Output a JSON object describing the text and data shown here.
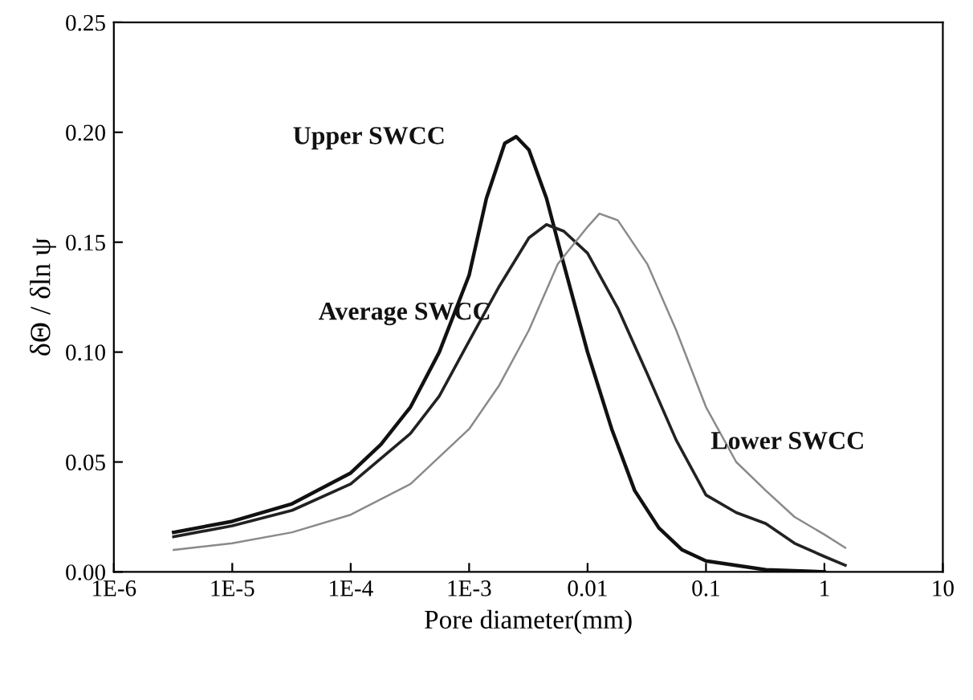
{
  "chart_data": {
    "type": "line",
    "xlabel": "Pore diameter(mm)",
    "ylabel": "δΘ / δln ψ",
    "log": "x",
    "grid": false,
    "legend": false,
    "marker": "none",
    "line_style": "solid",
    "xlim": [
      1e-06,
      10
    ],
    "xticks": [
      {
        "value": 1e-06,
        "label": "1E-6"
      },
      {
        "value": 1e-05,
        "label": "1E-5"
      },
      {
        "value": 0.0001,
        "label": "1E-4"
      },
      {
        "value": 0.001,
        "label": "1E-3"
      },
      {
        "value": 0.01,
        "label": "0.01"
      },
      {
        "value": 0.1,
        "label": "0.1"
      },
      {
        "value": 1,
        "label": "1"
      },
      {
        "value": 10,
        "label": "10"
      }
    ],
    "ylim": [
      0,
      0.25
    ],
    "yticks": [
      {
        "value": 0,
        "label": "0.00"
      },
      {
        "value": 0.05,
        "label": "0.05"
      },
      {
        "value": 0.1,
        "label": "0.10"
      },
      {
        "value": 0.15,
        "label": "0.15"
      },
      {
        "value": 0.2,
        "label": "0.20"
      },
      {
        "value": 0.25,
        "label": "0.25"
      }
    ],
    "series": [
      {
        "name": "Upper SWCC",
        "color": "#111111",
        "x": [
          3.2e-06,
          1e-05,
          3.2e-05,
          0.0001,
          0.00018,
          0.00032,
          0.00056,
          0.001,
          0.0014,
          0.002,
          0.0025,
          0.0032,
          0.0045,
          0.0063,
          0.01,
          0.016,
          0.025,
          0.04,
          0.063,
          0.1,
          0.32,
          1
        ],
        "values": [
          0.018,
          0.023,
          0.031,
          0.045,
          0.058,
          0.075,
          0.1,
          0.135,
          0.17,
          0.195,
          0.198,
          0.192,
          0.17,
          0.14,
          0.1,
          0.065,
          0.037,
          0.02,
          0.01,
          0.005,
          0.001,
          0.0
        ]
      },
      {
        "name": "Average SWCC",
        "color": "#222222",
        "x": [
          3.2e-06,
          1e-05,
          3.2e-05,
          0.0001,
          0.00032,
          0.00056,
          0.001,
          0.0018,
          0.0032,
          0.0045,
          0.0063,
          0.01,
          0.018,
          0.032,
          0.056,
          0.1,
          0.18,
          0.32,
          0.56,
          1,
          1.5
        ],
        "values": [
          0.016,
          0.021,
          0.028,
          0.04,
          0.063,
          0.08,
          0.105,
          0.13,
          0.152,
          0.158,
          0.155,
          0.145,
          0.12,
          0.09,
          0.06,
          0.035,
          0.027,
          0.022,
          0.013,
          0.007,
          0.003
        ]
      },
      {
        "name": "Lower SWCC",
        "color": "#8a8a8a",
        "x": [
          3.2e-06,
          1e-05,
          3.2e-05,
          0.0001,
          0.00032,
          0.001,
          0.0018,
          0.0032,
          0.0056,
          0.01,
          0.0126,
          0.018,
          0.032,
          0.056,
          0.1,
          0.18,
          0.32,
          0.56,
          1,
          1.5
        ],
        "values": [
          0.01,
          0.013,
          0.018,
          0.026,
          0.04,
          0.065,
          0.085,
          0.11,
          0.14,
          0.157,
          0.163,
          0.16,
          0.14,
          0.11,
          0.075,
          0.05,
          0.037,
          0.025,
          0.017,
          0.011
        ]
      }
    ]
  }
}
